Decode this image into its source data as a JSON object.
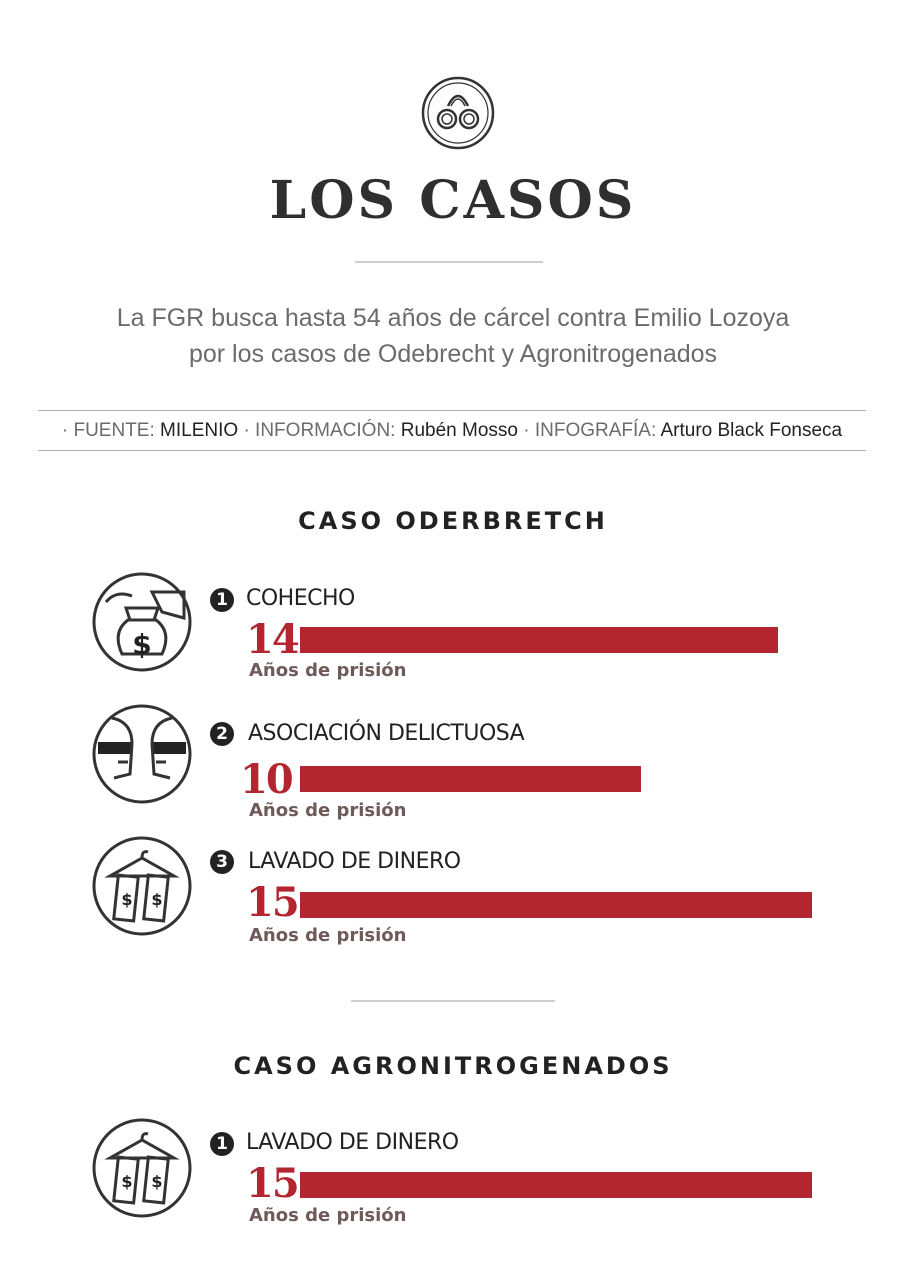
{
  "header": {
    "logo_icon": "handcuffs-icon",
    "title": "LOS CASOS",
    "subtitle_line1": "La FGR busca hasta 54 años de cárcel contra Emilio Lozoya",
    "subtitle_line2": "por los casos de Odebrecht y Agronitrogenados"
  },
  "credits": {
    "source_label": "· FUENTE:",
    "source_value": "MILENIO",
    "info_label": "· INFORMACIÓN:",
    "info_value": "Rubén Mosso",
    "graphic_label": "· INFOGRAFÍA:",
    "graphic_value": "Arturo Black Fonseca"
  },
  "colors": {
    "accent": "#b3262f",
    "text": "#222222",
    "muted": "#6b6b6b"
  },
  "chart_data": [
    {
      "type": "bar",
      "title": "CASO ODERBRETCH",
      "categories": [
        "COHECHO",
        "ASOCIACIÓN DELICTUOSA",
        "LAVADO DE DINERO"
      ],
      "values": [
        14,
        10,
        15
      ],
      "numbers": [
        "1",
        "2",
        "3"
      ],
      "icons": [
        "bribe-money-bag-icon",
        "masked-conspirators-icon",
        "hanging-money-icon"
      ],
      "unit_label": "Años de prisión"
    },
    {
      "type": "bar",
      "title": "CASO AGRONITROGENADOS",
      "categories": [
        "LAVADO DE DINERO"
      ],
      "values": [
        15
      ],
      "numbers": [
        "1"
      ],
      "icons": [
        "hanging-money-icon"
      ],
      "unit_label": "Años de prisión"
    }
  ]
}
